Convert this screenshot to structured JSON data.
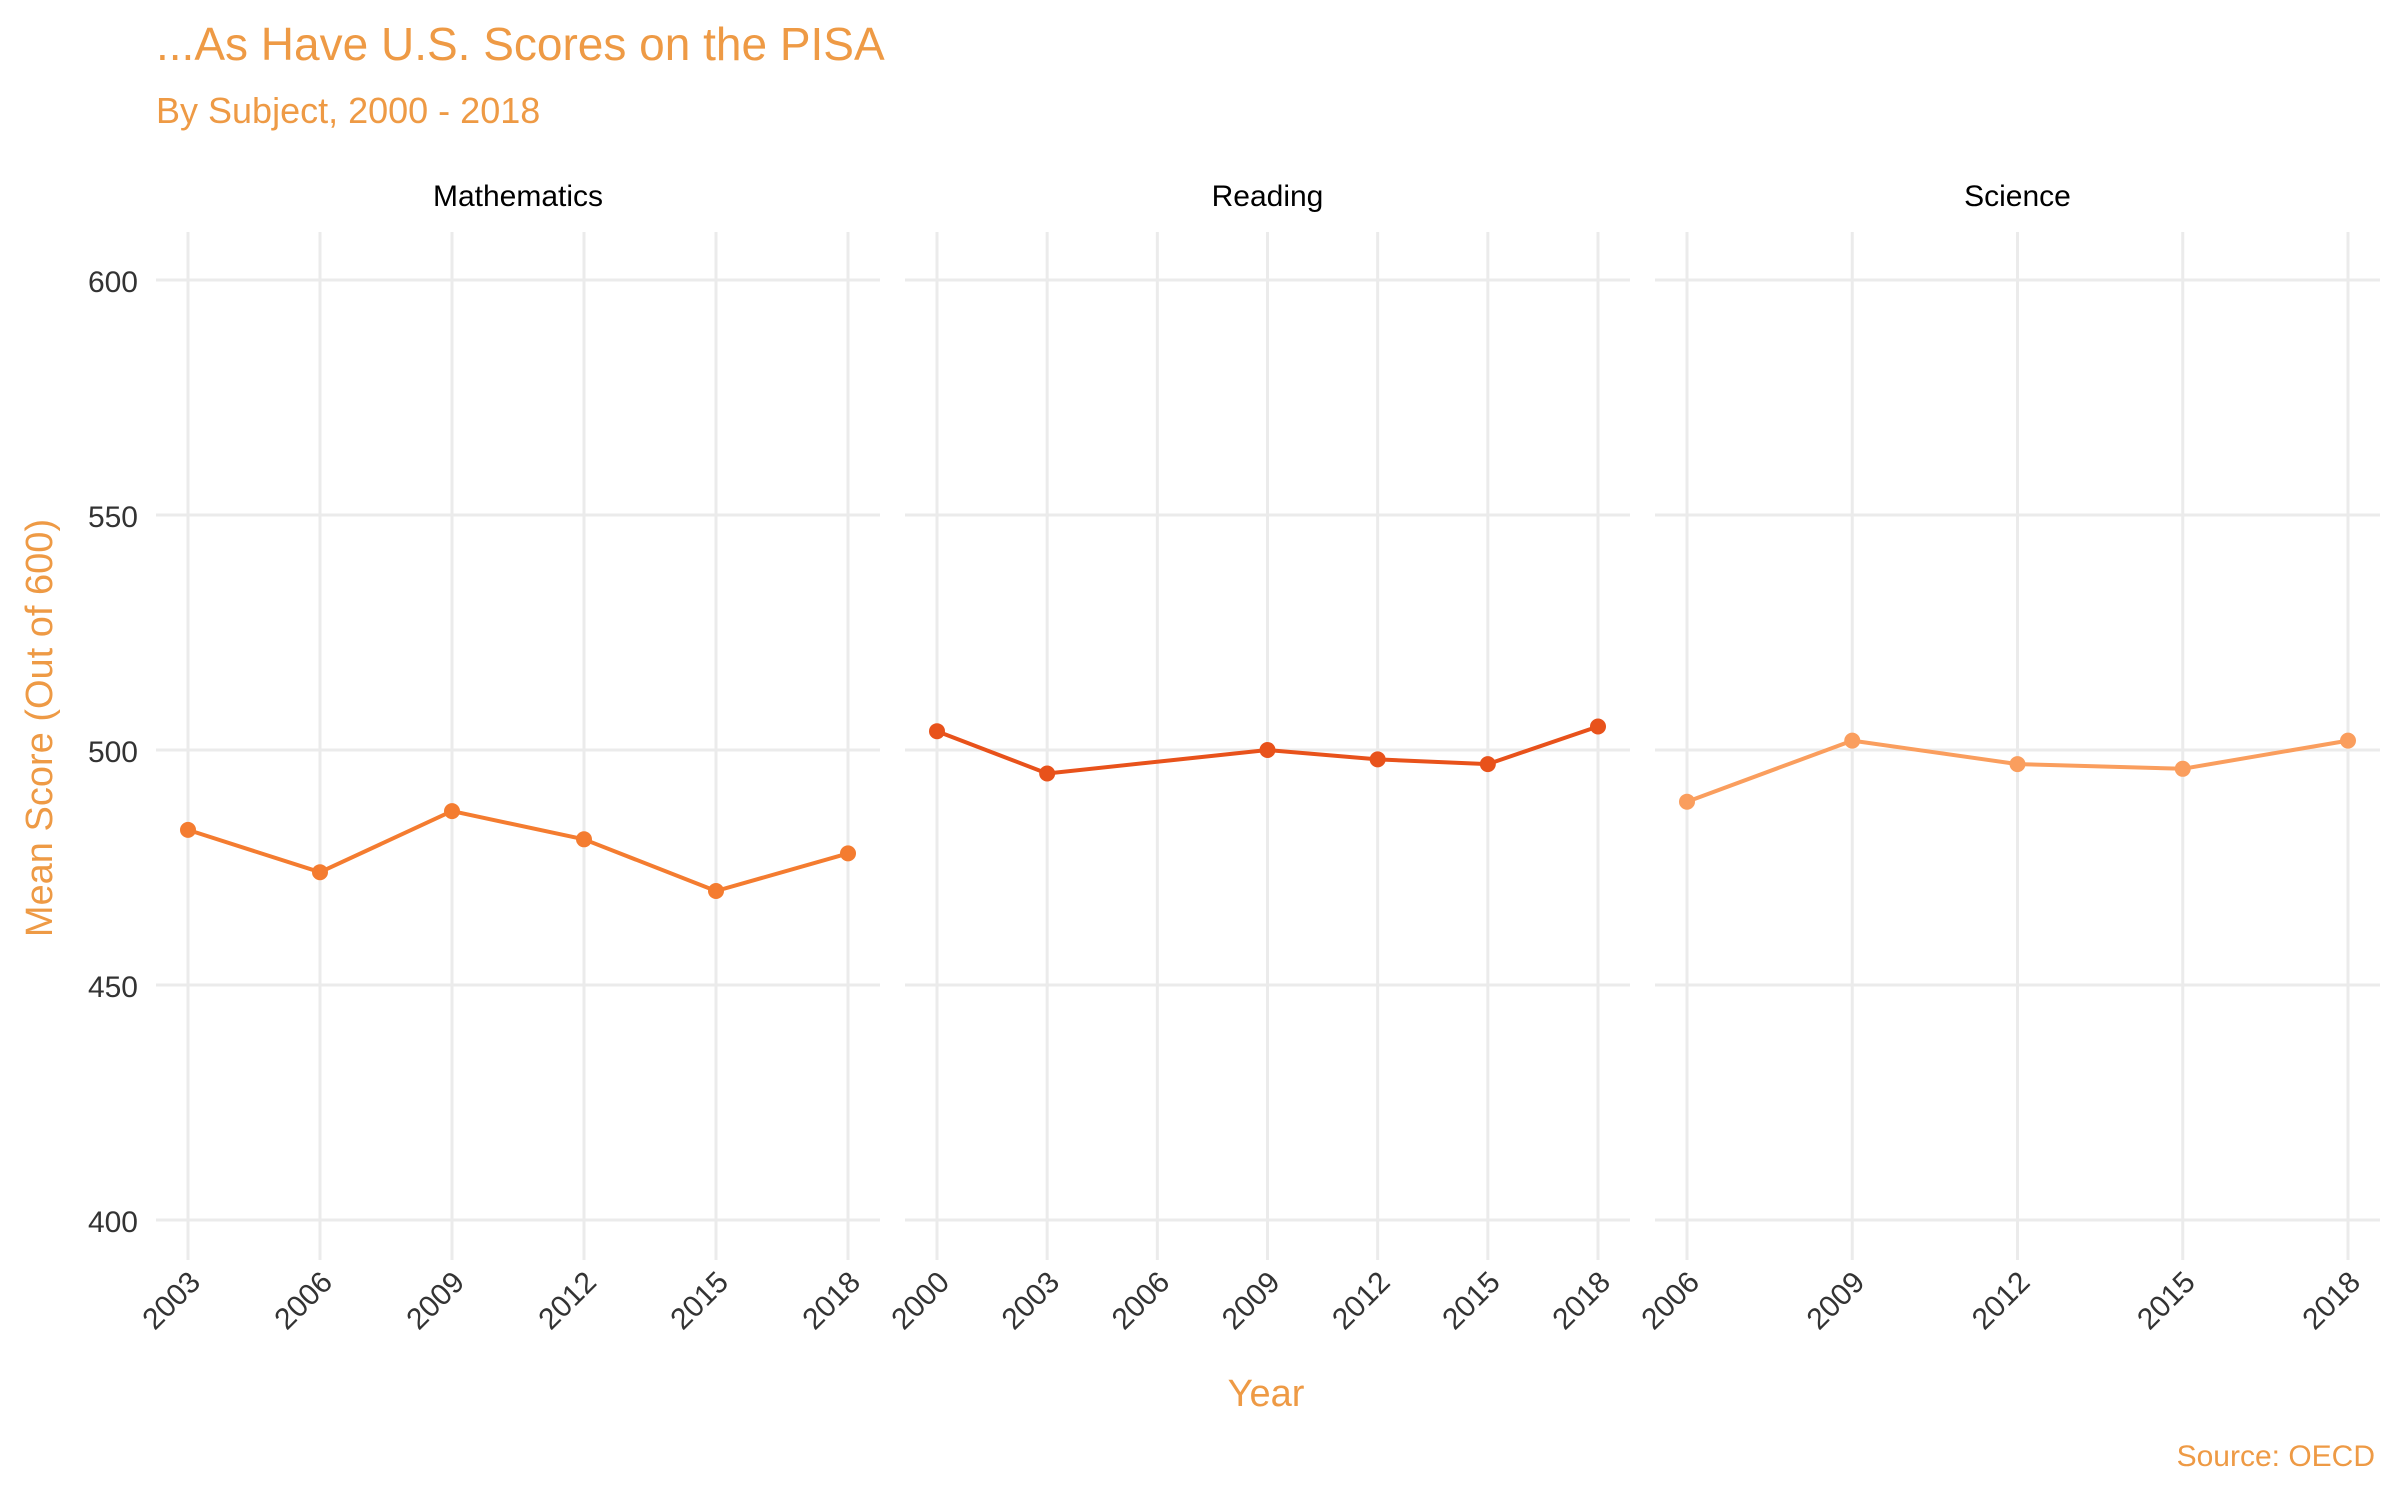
{
  "chart_data": {
    "type": "line",
    "title": "...As Have U.S. Scores on the PISA",
    "subtitle": "By Subject, 2000 - 2018",
    "xlabel": "Year",
    "ylabel": "Mean Score (Out of 600)",
    "caption": "Source: OECD",
    "ylim": [
      400,
      600
    ],
    "yticks": [
      400,
      450,
      500,
      550,
      600
    ],
    "grid": true,
    "legend": "none",
    "colors": {
      "title": "#EE9A45",
      "axis_text": "#333333",
      "strip_text": "#000000",
      "grid": "#EBEBEB"
    },
    "panels": [
      {
        "name": "Mathematics",
        "color": "#F47C30",
        "x": [
          2003,
          2006,
          2009,
          2012,
          2015,
          2018
        ],
        "y": [
          483,
          474,
          487,
          481,
          470,
          478
        ]
      },
      {
        "name": "Reading",
        "color": "#E8521B",
        "x": [
          2000,
          2003,
          2009,
          2012,
          2015,
          2018
        ],
        "y": [
          504,
          495,
          500,
          498,
          497,
          505
        ],
        "xticks": [
          2000,
          2003,
          2006,
          2009,
          2012,
          2015,
          2018
        ]
      },
      {
        "name": "Science",
        "color": "#FA9E5E",
        "x": [
          2006,
          2009,
          2012,
          2015,
          2018
        ],
        "y": [
          489,
          502,
          497,
          496,
          502
        ]
      }
    ]
  }
}
